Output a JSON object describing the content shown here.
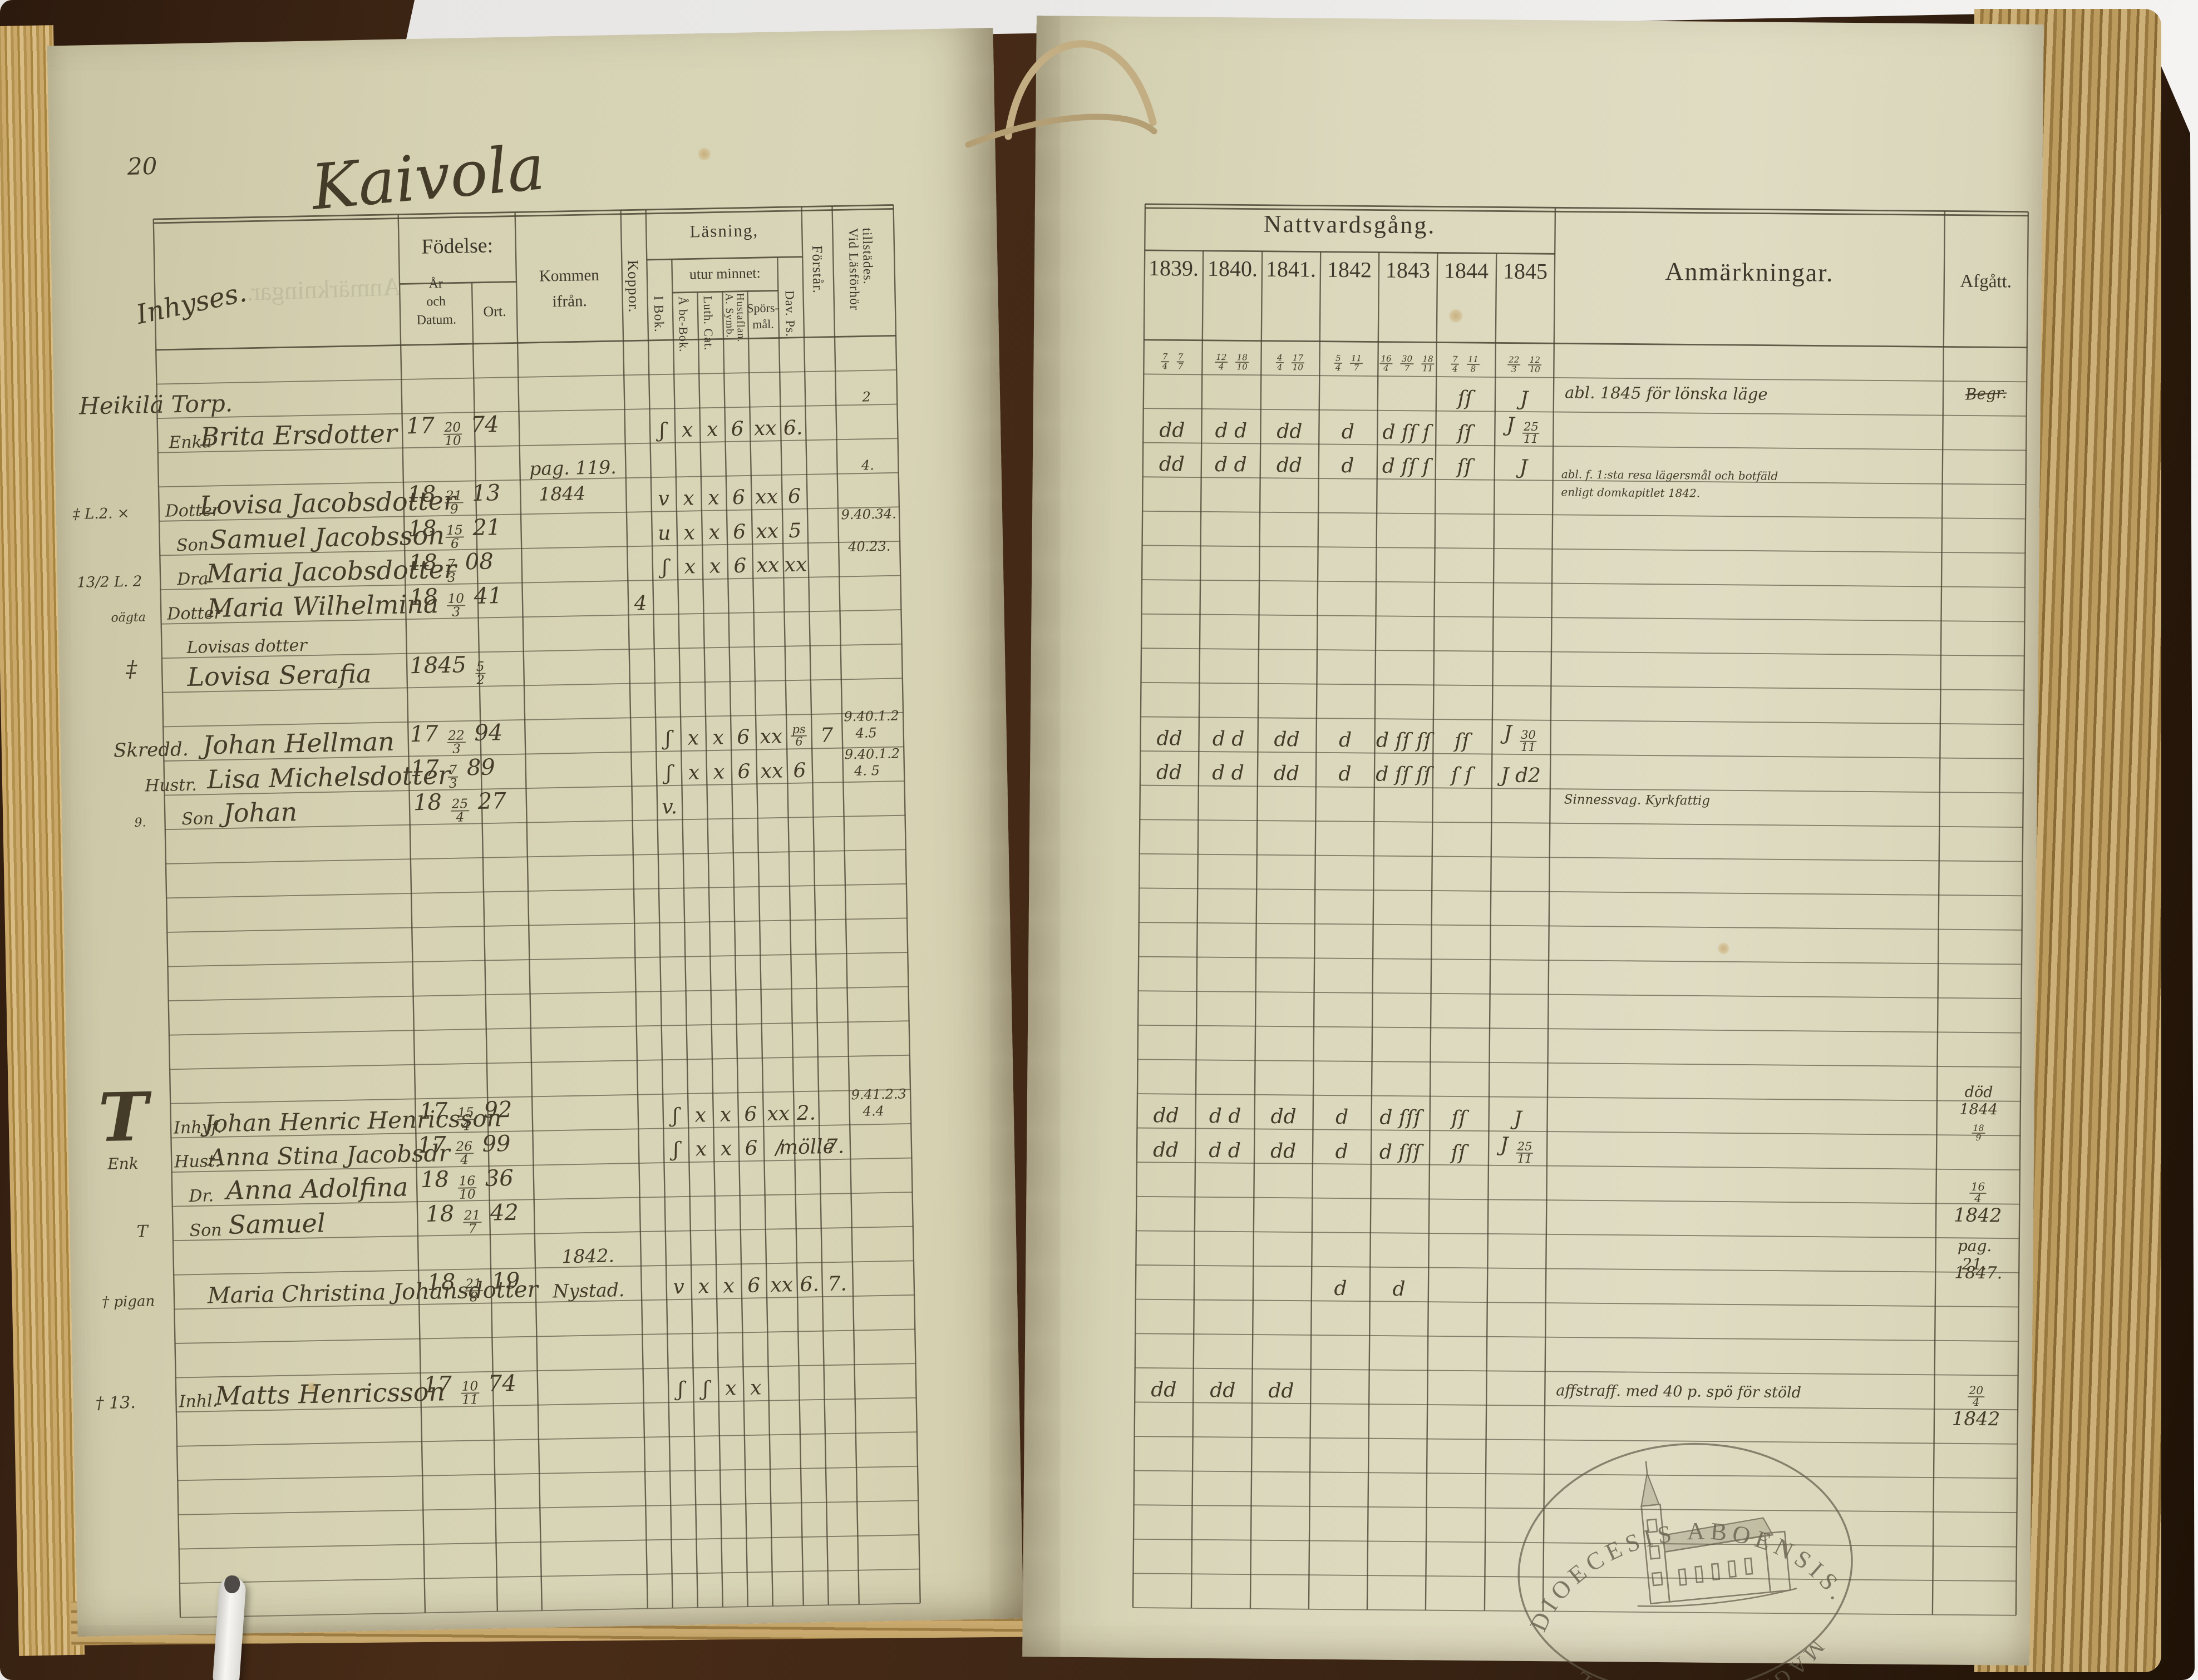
{
  "photo": {
    "background": "#eceae8",
    "book_cover": "#3a2315",
    "paper_left": "#d3cfae",
    "paper_right": "#dbd7bd",
    "page_edge": "#bfa06a",
    "ink": "#42392a"
  },
  "left_page": {
    "page_number": "20",
    "title": "Kaivola",
    "category_label": "Inhyses.",
    "header": {
      "fodelse": "Födelse:",
      "ar_och_datum": "År\noch\nDatum.",
      "ort": "Ort.",
      "kommen_ifran": "Kommen\nifrån.",
      "koppor": "Koppor.",
      "lasning": "Läsning,",
      "utur_minnet": "utur minnet:",
      "i_bok": "I Bok.",
      "abc_bok": "Å bc-Bok.",
      "luth_cat": "Luth. Cat.",
      "symb_hustaflan": "A. Symb.\nHustaflan.",
      "sporsmal": "Spörs-\nmål.",
      "dav_ps": "Dav. Ps.",
      "forstar": "Förstår.",
      "vid_lasforhor": "Vid Läsförhör\ntillstädes."
    },
    "entries": [
      {
        "name": "Heikilä Torp.",
        "vid": "2"
      },
      {
        "pre": "Enka",
        "name": "Brita Ersdotter",
        "birth": "17 20/10 74",
        "marks": [
          "ʃ",
          "x",
          "x",
          "6",
          "xx",
          "6.",
          ""
        ]
      },
      {
        "kommen": "pag. 119.",
        "vid": "4."
      },
      {
        "margin": "‡ L.2. ×",
        "pre": "Dotter",
        "name": "Lovisa Jacobsdotter",
        "birth": "18 21/9 13",
        "kommen": "1844",
        "marks": [
          "v",
          "x",
          "x",
          "6",
          "xx",
          "6",
          ""
        ],
        "vid": "9.40.34."
      },
      {
        "pre": "Son",
        "name": "Samuel Jacobsson",
        "birth": "18 15/6 21",
        "marks": [
          "u",
          "x",
          "x",
          "6",
          "xx",
          "5",
          ""
        ],
        "vid": "40.23."
      },
      {
        "margin": "13/2 L. 2",
        "pre": "Dra",
        "name": "Maria Jacobsdotter",
        "birth": "18 7/3 08",
        "marks": [
          "ʃ",
          "x",
          "x",
          "6",
          "xx",
          "xx",
          ""
        ]
      },
      {
        "margin": "oägta",
        "pre": "Dotter",
        "name": "Maria Wilhelmina",
        "birth": "18 10/3 41",
        "koppor": "4"
      },
      {
        "margin": "‡",
        "name_line1": "Lovisas dotter",
        "name": "Lovisa Serafia",
        "birth": "1845 5/2"
      },
      {
        "pre": "Skredd.",
        "name": "Johan Hellman",
        "birth": "17 22/3 94",
        "marks": [
          "ʃ",
          "x",
          "x",
          "6",
          "xx",
          "ps/6",
          "7"
        ],
        "vid": "9.40.1.2",
        "vid2": "4.5"
      },
      {
        "pre": "Hustr.",
        "name": "Lisa Michelsdotter",
        "birth": "17 7/3 89",
        "marks": [
          "ʃ",
          "x",
          "x",
          "6",
          "xx",
          "6",
          ""
        ],
        "vid": "9.40.1.2",
        "vid2": "4. 5"
      },
      {
        "margin": "9.",
        "pre": "Son",
        "name": "Johan",
        "birth": "18 25/4 27",
        "marks": [
          "v.",
          "",
          "",
          "",
          "",
          "",
          ""
        ]
      },
      {
        "margin": "T",
        "pre": "Inhyf.",
        "name": "Johan Henric Henricsson",
        "birth": "17 15/4 92",
        "marks": [
          "ʃ",
          "x",
          "x",
          "6",
          "xx",
          "2.",
          ""
        ],
        "vid": "9.41.2.3",
        "vid2": "4.4"
      },
      {
        "margin": "Enk",
        "pre": "Hust.",
        "name": "Anna Stina Jacobsdr",
        "birth": "17 26/4 99",
        "marks": [
          "ʃ",
          "x",
          "x",
          "6",
          "/",
          "mölle",
          "7."
        ]
      },
      {
        "pre": "Dr.",
        "name": "Anna Adolfina",
        "birth": "18 16/10 36"
      },
      {
        "margin": "T",
        "pre": "Son",
        "name": "Samuel",
        "birth": "18 21/7 42"
      },
      {
        "margin": "† pigan",
        "name": "Maria Christina Johansdotter",
        "birth": "18 21/8 19",
        "kommen": "1842.",
        "kommen2": "Nystad.",
        "marks": [
          "v",
          "x",
          "x",
          "6",
          "xx",
          "6.",
          "7."
        ]
      },
      {
        "margin": "† 13.",
        "pre": "Inhl.",
        "name": "Matts Henricsson",
        "birth": "17 10/11 74",
        "marks": [
          "ʃ",
          "ʃ",
          "x",
          "x",
          "",
          "",
          ""
        ]
      }
    ]
  },
  "right_page": {
    "header": {
      "nattvardsgang": "Nattvardsgång.",
      "years": [
        "1839.",
        "1840.",
        "1841.",
        "1842",
        "1843",
        "1844",
        "1845"
      ],
      "anmarkningar": "Anmärkningar.",
      "afgatt": "Afgått."
    },
    "rows": [
      {
        "cells": [
          "7/4 7/7",
          "12/4 18/10",
          "4/4 17/10",
          "5/4 11/7",
          "16/4 30/7 18/11",
          "7/4 11/8",
          "22/3 12/10"
        ]
      },
      {
        "cells": [
          "",
          "",
          "",
          "",
          "",
          "ſſ",
          "J"
        ],
        "anm": "abl. 1845 för lönska läge",
        "afgatt": "Begr."
      },
      {
        "cells": [
          "dd",
          "d d",
          "dd",
          "d",
          "d ſſ ſ",
          "ſſ",
          "J 25/11"
        ],
        "anm": "abl. f. 1:sta resa lägersmål och botfäld\nenligt domkapitlet 1842."
      },
      {
        "cells": [
          "dd",
          "d d",
          "dd",
          "d",
          "d ſſ ſ",
          "ſſ",
          "J"
        ]
      },
      {
        "cells": [
          "dd",
          "d d",
          "dd",
          "d",
          "d ſſ ſſ",
          "ſſ",
          "J 30/11"
        ]
      },
      {
        "cells": [
          "dd",
          "d d",
          "dd",
          "d",
          "d ſſ ſſ",
          "ſ ſ",
          "J d2"
        ],
        "anm": "Sinnessvag. Kyrkfattig"
      },
      {
        "cells": [
          "dd",
          "d d",
          "dd",
          "d",
          "d ſſſ",
          "ſſ",
          "J"
        ],
        "afgatt": "död 1844 18/9"
      },
      {
        "cells": [
          "dd",
          "d d",
          "dd",
          "d",
          "d ſſſ",
          "ſſ",
          "J 25/11"
        ]
      },
      {
        "afgatt": "16/4 1842"
      },
      {
        "afgatt": "pag. 21.",
        "afgatt2": "1847."
      },
      {
        "cells": [
          "",
          "",
          "",
          "d",
          "d",
          "",
          ""
        ]
      },
      {
        "cells": [
          "dd",
          "dd",
          "dd",
          "",
          "",
          "",
          ""
        ],
        "anm": "affstraff. med 40 p. spö för stöld",
        "afgatt": "20/4 1842"
      }
    ]
  },
  "stamp": {
    "top_text": "DIOECESIS ABOENSIS.",
    "bottom_text": "MAGN: PRINC: FINL."
  }
}
